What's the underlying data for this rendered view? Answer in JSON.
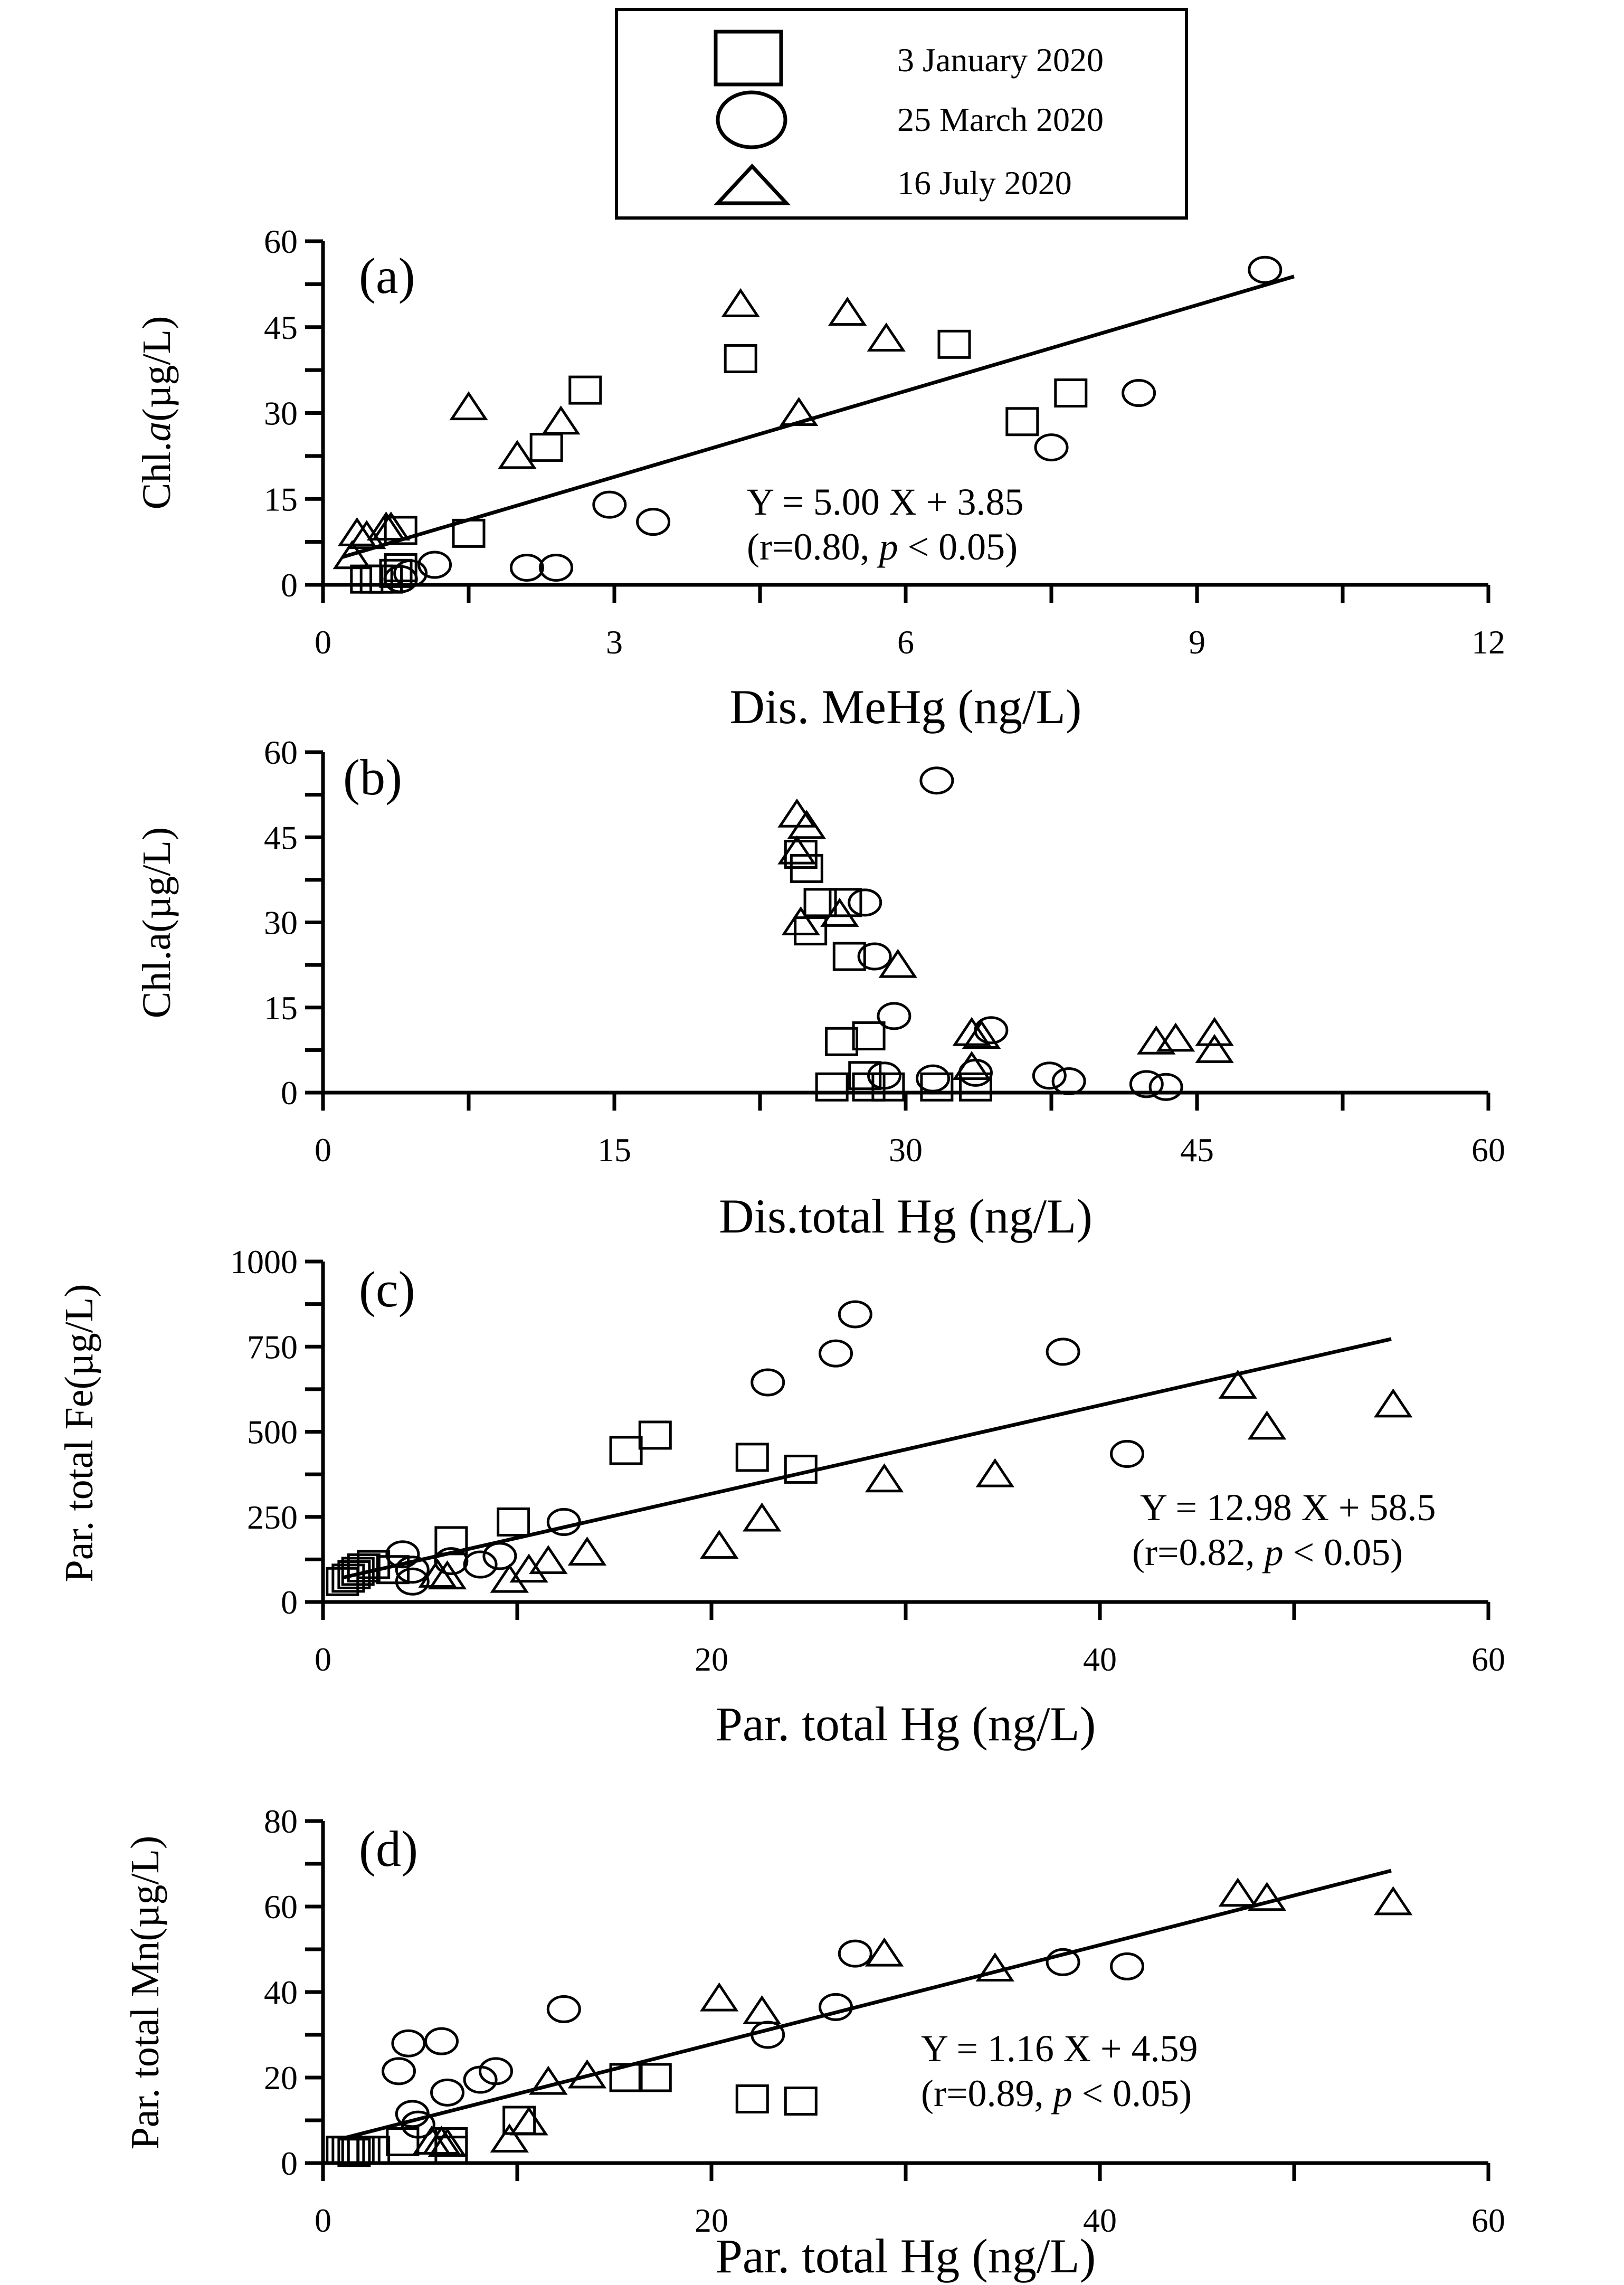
{
  "legend": [
    {
      "marker": "square",
      "label": "3 January 2020"
    },
    {
      "marker": "circle",
      "label": "25 March 2020"
    },
    {
      "marker": "triangle",
      "label": "16 July 2020"
    }
  ],
  "chart_data": [
    {
      "type": "scatter",
      "panel": "(a)",
      "xlabel": "Dis. MeHg (ng/L)",
      "ylabel_prefix": "Chl.",
      "ylabel_italic": "a",
      "ylabel_suffix": "(µg/L)",
      "xlim": [
        0,
        12
      ],
      "ylim": [
        0,
        60
      ],
      "xticks": [
        0,
        3,
        6,
        9,
        12
      ],
      "yticks": [
        0,
        15,
        30,
        45,
        60
      ],
      "fit": {
        "slope": 5.0,
        "intercept": 3.85,
        "x": [
          0.2,
          10.0
        ],
        "equation": "Y = 5.00 X + 3.85",
        "stats_pre": "(r=0.80, ",
        "stats_p": "p",
        "stats_post": " < 0.05)"
      },
      "series": [
        {
          "name": "3 January 2020",
          "marker": "square",
          "points": [
            [
              0.45,
              1
            ],
            [
              0.55,
              1
            ],
            [
              0.65,
              1
            ],
            [
              0.75,
              2
            ],
            [
              0.8,
              3
            ],
            [
              0.8,
              9.5
            ],
            [
              1.5,
              9
            ],
            [
              2.3,
              24
            ],
            [
              2.7,
              34
            ],
            [
              4.3,
              39.5
            ],
            [
              6.5,
              42
            ],
            [
              7.2,
              28.5
            ],
            [
              7.7,
              33.5
            ]
          ]
        },
        {
          "name": "25 March 2020",
          "marker": "circle",
          "points": [
            [
              0.8,
              1
            ],
            [
              0.9,
              2
            ],
            [
              1.15,
              3.5
            ],
            [
              2.1,
              3
            ],
            [
              2.4,
              3
            ],
            [
              2.95,
              14
            ],
            [
              3.4,
              11
            ],
            [
              7.5,
              24
            ],
            [
              8.4,
              33.5
            ],
            [
              9.7,
              55
            ]
          ]
        },
        {
          "name": "16 July 2020",
          "marker": "triangle",
          "points": [
            [
              0.3,
              5
            ],
            [
              0.35,
              9
            ],
            [
              0.45,
              8.5
            ],
            [
              0.65,
              10
            ],
            [
              0.7,
              10
            ],
            [
              1.5,
              31
            ],
            [
              2.0,
              22.5
            ],
            [
              2.45,
              28.5
            ],
            [
              4.3,
              49
            ],
            [
              4.9,
              30
            ],
            [
              5.4,
              47.5
            ],
            [
              5.8,
              43
            ]
          ]
        }
      ]
    },
    {
      "type": "scatter",
      "panel": "(b)",
      "xlabel": "Dis.total Hg (ng/L)",
      "ylabel_prefix": "Chl.a",
      "ylabel_italic": "",
      "ylabel_suffix": "(µg/L)",
      "xlim": [
        0,
        60
      ],
      "ylim": [
        0,
        60
      ],
      "xticks": [
        0,
        15,
        30,
        45,
        60
      ],
      "yticks": [
        0,
        15,
        30,
        45,
        60
      ],
      "series": [
        {
          "name": "3 January 2020",
          "marker": "square",
          "points": [
            [
              24.6,
              42
            ],
            [
              24.9,
              39.5
            ],
            [
              25.1,
              28.5
            ],
            [
              25.6,
              33.5
            ],
            [
              26.9,
              33.5
            ],
            [
              27.1,
              24
            ],
            [
              26.7,
              9
            ],
            [
              28.1,
              10
            ],
            [
              27.9,
              3
            ],
            [
              26.2,
              1
            ],
            [
              28.1,
              1
            ],
            [
              29.1,
              1
            ],
            [
              31.6,
              1
            ],
            [
              33.6,
              1
            ]
          ]
        },
        {
          "name": "25 March 2020",
          "marker": "circle",
          "points": [
            [
              31.6,
              55
            ],
            [
              27.9,
              33.5
            ],
            [
              28.4,
              24
            ],
            [
              29.4,
              13.5
            ],
            [
              34.4,
              11
            ],
            [
              28.9,
              3
            ],
            [
              31.4,
              2.5
            ],
            [
              33.6,
              3.5
            ],
            [
              37.4,
              3
            ],
            [
              38.4,
              2
            ],
            [
              42.4,
              1.5
            ],
            [
              43.4,
              1
            ]
          ]
        },
        {
          "name": "16 July 2020",
          "marker": "triangle",
          "points": [
            [
              24.4,
              49
            ],
            [
              24.9,
              47
            ],
            [
              24.4,
              42.5
            ],
            [
              24.6,
              30
            ],
            [
              26.6,
              31.5
            ],
            [
              29.6,
              22.5
            ],
            [
              33.4,
              10.5
            ],
            [
              33.9,
              10
            ],
            [
              33.4,
              4.5
            ],
            [
              42.9,
              9
            ],
            [
              43.9,
              9.5
            ],
            [
              45.9,
              10.5
            ],
            [
              45.9,
              7.5
            ]
          ]
        }
      ]
    },
    {
      "type": "scatter",
      "panel": "(c)",
      "xlabel": "Par. total Hg (ng/L)",
      "ylabel_prefix": "Par. total Fe",
      "ylabel_italic": "",
      "ylabel_suffix": "(µg/L)",
      "xlim": [
        0,
        60
      ],
      "ylim": [
        0,
        1000
      ],
      "xticks": [
        0,
        20,
        40,
        60
      ],
      "yticks": [
        0,
        250,
        500,
        750,
        1000
      ],
      "fit": {
        "slope": 12.98,
        "intercept": 58.5,
        "x": [
          1.0,
          55.0
        ],
        "equation": "Y = 12.98 X + 58.5",
        "stats_pre": "(r=0.82, ",
        "stats_p": "p",
        "stats_post": " < 0.05)"
      },
      "series": [
        {
          "name": "3 January 2020",
          "marker": "square",
          "points": [
            [
              1,
              60
            ],
            [
              1.3,
              70
            ],
            [
              1.6,
              80
            ],
            [
              1.8,
              90
            ],
            [
              2.1,
              100
            ],
            [
              2.6,
              110
            ],
            [
              3.6,
              95
            ],
            [
              6.6,
              180
            ],
            [
              9.8,
              235
            ],
            [
              15.6,
              445
            ],
            [
              17.1,
              490
            ],
            [
              22.1,
              425
            ],
            [
              24.6,
              390
            ]
          ]
        },
        {
          "name": "25 March 2020",
          "marker": "circle",
          "points": [
            [
              4.1,
              140
            ],
            [
              4.6,
              95
            ],
            [
              4.6,
              60
            ],
            [
              6.6,
              120
            ],
            [
              8.1,
              110
            ],
            [
              9.1,
              135
            ],
            [
              12.4,
              235
            ],
            [
              22.9,
              645
            ],
            [
              26.4,
              730
            ],
            [
              27.4,
              845
            ],
            [
              38.1,
              735
            ],
            [
              41.4,
              435
            ]
          ]
        },
        {
          "name": "16 July 2020",
          "marker": "triangle",
          "points": [
            [
              5.9,
              80
            ],
            [
              6.4,
              75
            ],
            [
              9.6,
              65
            ],
            [
              10.6,
              95
            ],
            [
              11.6,
              120
            ],
            [
              13.6,
              145
            ],
            [
              20.4,
              165
            ],
            [
              22.6,
              245
            ],
            [
              28.9,
              360
            ],
            [
              34.6,
              375
            ],
            [
              47.1,
              635
            ],
            [
              48.6,
              515
            ],
            [
              55.1,
              580
            ]
          ]
        }
      ]
    },
    {
      "type": "scatter",
      "panel": "(d)",
      "xlabel": "Par. total Hg (ng/L)",
      "ylabel_prefix": "Par. total Mn",
      "ylabel_italic": "",
      "ylabel_suffix": "(µg/L)",
      "xlim": [
        0,
        60
      ],
      "ylim": [
        0,
        80
      ],
      "xticks": [
        0,
        20,
        40,
        60
      ],
      "yticks": [
        0,
        20,
        40,
        60,
        80
      ],
      "fit": {
        "slope": 1.16,
        "intercept": 4.59,
        "x": [
          1.0,
          55.0
        ],
        "equation": "Y = 1.16 X + 4.59",
        "stats_pre": "(r=0.89, ",
        "stats_p": "p",
        "stats_post": " < 0.05)"
      },
      "series": [
        {
          "name": "3 January 2020",
          "marker": "square",
          "points": [
            [
              1,
              3
            ],
            [
              1.3,
              3
            ],
            [
              1.6,
              2.5
            ],
            [
              1.8,
              3
            ],
            [
              2.1,
              3
            ],
            [
              2.6,
              3
            ],
            [
              4.1,
              5
            ],
            [
              6.6,
              5
            ],
            [
              6.6,
              3
            ],
            [
              10.1,
              10
            ],
            [
              15.6,
              20
            ],
            [
              17.1,
              20
            ],
            [
              22.1,
              15
            ],
            [
              24.6,
              14.5
            ]
          ]
        },
        {
          "name": "25 March 2020",
          "marker": "circle",
          "points": [
            [
              3.9,
              21.5
            ],
            [
              4.4,
              28
            ],
            [
              4.6,
              11.5
            ],
            [
              4.9,
              9
            ],
            [
              6.1,
              28.5
            ],
            [
              6.4,
              16.5
            ],
            [
              8.1,
              19.5
            ],
            [
              8.9,
              21.5
            ],
            [
              12.4,
              36
            ],
            [
              22.9,
              30
            ],
            [
              26.4,
              36.5
            ],
            [
              27.4,
              49
            ],
            [
              38.1,
              47
            ],
            [
              41.4,
              46
            ]
          ]
        },
        {
          "name": "16 July 2020",
          "marker": "triangle",
          "points": [
            [
              5.6,
              5
            ],
            [
              6.1,
              5
            ],
            [
              6.4,
              4.5
            ],
            [
              9.6,
              5.5
            ],
            [
              10.6,
              9.5
            ],
            [
              11.6,
              19
            ],
            [
              13.6,
              20.5
            ],
            [
              20.4,
              38.5
            ],
            [
              22.6,
              35.5
            ],
            [
              28.9,
              49
            ],
            [
              34.6,
              45.5
            ],
            [
              47.1,
              63
            ],
            [
              48.6,
              62
            ],
            [
              55.1,
              61
            ]
          ]
        }
      ]
    }
  ]
}
